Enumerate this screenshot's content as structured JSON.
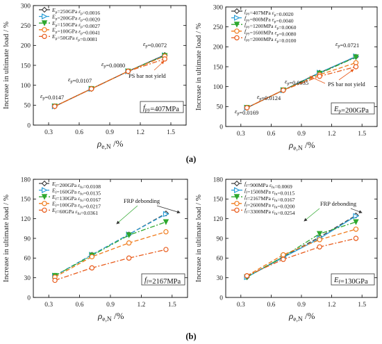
{
  "figure": {
    "panel_labels": [
      "(a)",
      "(b)"
    ]
  },
  "chart_data": [
    {
      "type": "line",
      "ylabel": "Increase in ultimate load / %",
      "xlabel": "ρe,N /%",
      "xticks": [
        "0.3",
        "0.6",
        "0.9",
        "1.2",
        "1.5"
      ],
      "yticks": [
        "0",
        "50",
        "100",
        "150",
        "200",
        "250",
        "300"
      ],
      "xlim": [
        0.15,
        1.65
      ],
      "ylim": [
        0,
        300
      ],
      "x": [
        0.36,
        0.72,
        1.08,
        1.44
      ],
      "legend_position": "top-left",
      "box_label": "fpy=407MPa",
      "series": [
        {
          "name": "Ep=250GPa  εp=0.0016",
          "values": [
            47,
            91,
            135,
            176
          ],
          "color": "#404040",
          "marker": "diamond",
          "dash": "solid"
        },
        {
          "name": "Ep=200GPa  εp=0.0020",
          "values": [
            47,
            91,
            135,
            175
          ],
          "color": "#2a9fd8",
          "marker": "tri-right",
          "dash": "dash"
        },
        {
          "name": "Ep=150GPa  εp=0.0027",
          "values": [
            47,
            91,
            135,
            174
          ],
          "color": "#2ea82e",
          "marker": "tri-down",
          "dash": "dashdot"
        },
        {
          "name": "Ep=100GPa  εp=0.0041",
          "values": [
            47,
            91,
            135,
            173
          ],
          "color": "#f07a1a",
          "marker": "circle",
          "dash": "dash"
        },
        {
          "name": "Ep=50GPa  εp=0.0081",
          "values": [
            47,
            91,
            135,
            166
          ],
          "color": "#e85a1a",
          "marker": "circle",
          "dash": "dashdot"
        }
      ],
      "annotations": [
        "εp=0.0147",
        "εp=0.0107",
        "εp=0.0080",
        "εp=0.0072",
        "PS bar not yield"
      ]
    },
    {
      "type": "line",
      "ylabel": "Increase in ultimate load / %",
      "xlabel": "ρe,N /%",
      "xticks": [
        "0.3",
        "0.6",
        "0.9",
        "1.2",
        "1.5"
      ],
      "yticks": [
        "0",
        "50",
        "100",
        "150",
        "200",
        "250",
        "300"
      ],
      "xlim": [
        0.15,
        1.65
      ],
      "ylim": [
        0,
        300
      ],
      "x": [
        0.36,
        0.72,
        1.08,
        1.44
      ],
      "legend_position": "top-left",
      "box_label": "Ep=200GPa",
      "series": [
        {
          "name": "fpy=407MPa  εp=0.0020",
          "values": [
            47,
            91,
            135,
            175
          ],
          "color": "#404040",
          "marker": "diamond",
          "dash": "solid"
        },
        {
          "name": "fpy=800MPa  εp=0.0040",
          "values": [
            47,
            91,
            135,
            176
          ],
          "color": "#2a9fd8",
          "marker": "tri-right",
          "dash": "dash"
        },
        {
          "name": "fpy=1200MPa  εp=0.0060",
          "values": [
            47,
            91,
            133,
            174
          ],
          "color": "#2ea82e",
          "marker": "tri-down",
          "dash": "dashdot"
        },
        {
          "name": "fpy=1600MPa  εp=0.0080",
          "values": [
            47,
            91,
            130,
            160
          ],
          "color": "#f07a1a",
          "marker": "circle",
          "dash": "dash"
        },
        {
          "name": "fpy=2000MPa  εp=0.0100",
          "values": [
            47,
            91,
            126,
            150
          ],
          "color": "#e85a1a",
          "marker": "circle",
          "dash": "dashdot"
        }
      ],
      "annotations": [
        "εp=0.0169",
        "εp=0.0124",
        "εp=0.0935",
        "εp=0.0721",
        "PS bar not yield"
      ]
    },
    {
      "type": "line",
      "ylabel": "Increase in ultimate load / %",
      "xlabel": "ρe,N /%",
      "xticks": [
        "0.3",
        "0.6",
        "0.9",
        "1.2",
        "1.5"
      ],
      "yticks": [
        "0",
        "30",
        "60",
        "90",
        "120",
        "150",
        "180"
      ],
      "xlim": [
        0.15,
        1.65
      ],
      "ylim": [
        0,
        180
      ],
      "x": [
        0.36,
        0.72,
        1.08,
        1.44
      ],
      "legend_position": "top-left",
      "box_label": "ff=2167MPa",
      "series": [
        {
          "name": "Ef=200GPa  εfu=0.0108",
          "values": [
            33,
            65,
            96,
            128
          ],
          "color": "#404040",
          "marker": "diamond",
          "dash": "dash"
        },
        {
          "name": "Ef=160GPa  εfu=0.0135",
          "values": [
            33,
            65,
            96,
            127
          ],
          "color": "#2a9fd8",
          "marker": "tri-right",
          "dash": "dash"
        },
        {
          "name": "Ef=130GPa  εfu=0.0167",
          "values": [
            33,
            64,
            95,
            115
          ],
          "color": "#2ea82e",
          "marker": "tri-down",
          "dash": "dashdot"
        },
        {
          "name": "Ef=100GPa  εfu=0.0217",
          "values": [
            31,
            62,
            83,
            100
          ],
          "color": "#f07a1a",
          "marker": "circle",
          "dash": "dash"
        },
        {
          "name": "Ef=60GPa  εfu=0.0361",
          "values": [
            26,
            45,
            60,
            73
          ],
          "color": "#e85a1a",
          "marker": "circle",
          "dash": "dashdot"
        }
      ],
      "annotations": [
        "FRP debonding"
      ]
    },
    {
      "type": "line",
      "ylabel": "Increase in ultimate load / %",
      "xlabel": "ρe,N /%",
      "xticks": [
        "0.3",
        "0.6",
        "0.9",
        "1.2",
        "1.5"
      ],
      "yticks": [
        "0",
        "30",
        "60",
        "90",
        "120",
        "150",
        "180"
      ],
      "xlim": [
        0.15,
        1.65
      ],
      "ylim": [
        0,
        180
      ],
      "x": [
        0.36,
        0.72,
        1.08,
        1.44
      ],
      "legend_position": "top-left",
      "box_label": "Ef=130GPa",
      "series": [
        {
          "name": "ff=900MPa  εfu=0.0069",
          "values": [
            31,
            62,
            92,
            125
          ],
          "color": "#404040",
          "marker": "diamond",
          "dash": "dash"
        },
        {
          "name": "ff=1500MPa  εfu=0.0115",
          "values": [
            31,
            61,
            90,
            124
          ],
          "color": "#2a9fd8",
          "marker": "tri-right",
          "dash": "solid"
        },
        {
          "name": "ff=2167MPa  εfu=0.0167",
          "values": [
            31,
            62,
            97,
            115
          ],
          "color": "#2ea82e",
          "marker": "tri-down",
          "dash": "dashdot"
        },
        {
          "name": "ff=2600MPa  εfu=0.0200",
          "values": [
            33,
            65,
            88,
            104
          ],
          "color": "#f07a1a",
          "marker": "circle",
          "dash": "dash"
        },
        {
          "name": "ff=3300MPa  εfu=0.0254",
          "values": [
            33,
            58,
            77,
            90
          ],
          "color": "#e85a1a",
          "marker": "circle",
          "dash": "dashdot"
        }
      ],
      "annotations": [
        "FRP debonding"
      ]
    }
  ]
}
